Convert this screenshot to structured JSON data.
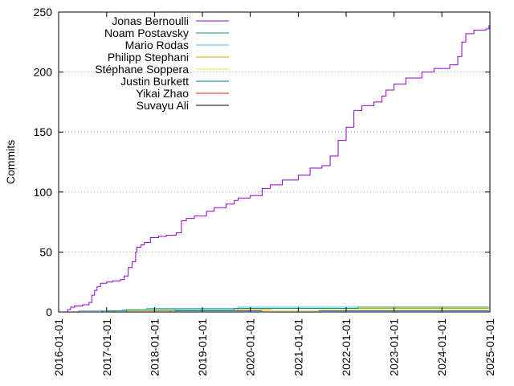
{
  "chart_data": {
    "type": "line",
    "ylabel": "Commits",
    "xlabel": "",
    "ylim": [
      0,
      250
    ],
    "xlim": [
      "2016-01-01",
      "2025-01-01"
    ],
    "yticks": [
      0,
      50,
      100,
      150,
      200,
      250
    ],
    "xticks": [
      "2016-01-01",
      "2017-01-01",
      "2018-01-01",
      "2019-01-01",
      "2020-01-01",
      "2021-01-01",
      "2022-01-01",
      "2023-01-01",
      "2024-01-01",
      "2025-01-01"
    ],
    "grid": "horizontal dotted",
    "legend_position": "top-left",
    "series": [
      {
        "name": "Jonas Bernoulli",
        "color": "#9400d3",
        "points": [
          [
            "2016-03-01",
            0
          ],
          [
            "2016-03-10",
            2
          ],
          [
            "2016-04-01",
            4
          ],
          [
            "2016-05-01",
            5
          ],
          [
            "2016-07-01",
            6
          ],
          [
            "2016-08-20",
            8
          ],
          [
            "2016-09-10",
            14
          ],
          [
            "2016-10-01",
            18
          ],
          [
            "2016-10-20",
            21
          ],
          [
            "2016-11-15",
            24
          ],
          [
            "2017-01-01",
            25
          ],
          [
            "2017-02-15",
            26
          ],
          [
            "2017-04-15",
            27
          ],
          [
            "2017-05-15",
            30
          ],
          [
            "2017-06-15",
            37
          ],
          [
            "2017-07-15",
            42
          ],
          [
            "2017-08-10",
            50
          ],
          [
            "2017-08-20",
            54
          ],
          [
            "2017-09-20",
            56
          ],
          [
            "2017-10-15",
            58
          ],
          [
            "2017-12-01",
            62
          ],
          [
            "2018-02-01",
            63
          ],
          [
            "2018-04-01",
            64
          ],
          [
            "2018-06-15",
            66
          ],
          [
            "2018-07-25",
            76
          ],
          [
            "2018-09-01",
            78
          ],
          [
            "2018-11-01",
            80
          ],
          [
            "2019-02-01",
            84
          ],
          [
            "2019-04-01",
            87
          ],
          [
            "2019-07-01",
            90
          ],
          [
            "2019-09-01",
            93
          ],
          [
            "2019-10-01",
            95
          ],
          [
            "2020-01-01",
            97
          ],
          [
            "2020-04-01",
            103
          ],
          [
            "2020-06-01",
            106
          ],
          [
            "2020-09-01",
            110
          ],
          [
            "2021-01-01",
            114
          ],
          [
            "2021-04-01",
            120
          ],
          [
            "2021-07-01",
            122
          ],
          [
            "2021-09-01",
            130
          ],
          [
            "2021-11-01",
            143
          ],
          [
            "2022-01-01",
            154
          ],
          [
            "2022-03-01",
            168
          ],
          [
            "2022-05-01",
            172
          ],
          [
            "2022-08-01",
            175
          ],
          [
            "2022-10-01",
            180
          ],
          [
            "2022-11-01",
            185
          ],
          [
            "2023-01-01",
            190
          ],
          [
            "2023-04-01",
            195
          ],
          [
            "2023-08-01",
            200
          ],
          [
            "2023-11-01",
            203
          ],
          [
            "2024-03-01",
            206
          ],
          [
            "2024-05-01",
            213
          ],
          [
            "2024-06-01",
            225
          ],
          [
            "2024-07-01",
            232
          ],
          [
            "2024-09-01",
            235
          ],
          [
            "2024-12-01",
            236
          ],
          [
            "2024-12-25",
            239
          ]
        ]
      },
      {
        "name": "Noam Postavsky",
        "color": "#009e73",
        "points": [
          [
            "2016-03-01",
            0
          ],
          [
            "2017-01-15",
            1
          ],
          [
            "2017-06-01",
            2
          ],
          [
            "2019-09-01",
            3
          ],
          [
            "2022-04-01",
            4
          ],
          [
            "2024-12-25",
            4
          ]
        ]
      },
      {
        "name": "Mario Rodas",
        "color": "#56b4e9",
        "points": [
          [
            "2016-03-01",
            0
          ],
          [
            "2016-06-01",
            1
          ],
          [
            "2017-05-01",
            2
          ],
          [
            "2017-11-01",
            3
          ],
          [
            "2019-10-01",
            4
          ],
          [
            "2024-12-25",
            4
          ]
        ]
      },
      {
        "name": "Philipp Stephani",
        "color": "#e69f00",
        "points": [
          [
            "2016-03-01",
            0
          ],
          [
            "2017-06-01",
            1
          ],
          [
            "2018-06-01",
            2
          ],
          [
            "2020-06-01",
            3
          ],
          [
            "2024-12-25",
            3
          ]
        ]
      },
      {
        "name": "Stéphane Soppera",
        "color": "#f0e442",
        "points": [
          [
            "2016-03-01",
            0
          ],
          [
            "2020-04-01",
            1
          ],
          [
            "2021-06-01",
            2
          ],
          [
            "2024-12-25",
            2
          ]
        ]
      },
      {
        "name": "Justin Burkett",
        "color": "#0072b2",
        "points": [
          [
            "2016-03-01",
            0
          ],
          [
            "2017-03-01",
            1
          ],
          [
            "2024-12-25",
            1
          ]
        ]
      },
      {
        "name": "Yikai Zhao",
        "color": "#e51e10",
        "points": [
          [
            "2016-03-01",
            0
          ],
          [
            "2018-05-01",
            1
          ],
          [
            "2024-12-25",
            1
          ]
        ]
      },
      {
        "name": "Suvayu Ali",
        "color": "#000000",
        "points": [
          [
            "2016-03-01",
            0
          ],
          [
            "2016-12-01",
            1
          ],
          [
            "2024-12-25",
            1
          ]
        ]
      }
    ]
  }
}
